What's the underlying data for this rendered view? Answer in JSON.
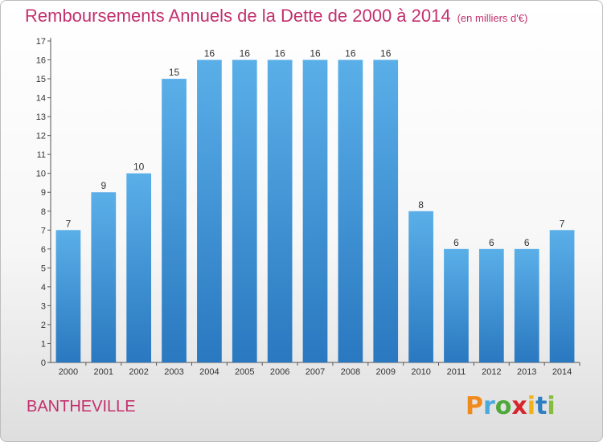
{
  "header": {
    "title": "Remboursements Annuels de la Dette de 2000 à 2014",
    "unit": "(en milliers d'€)"
  },
  "footer": {
    "place": "BANTHEVILLE",
    "logo_letters": [
      "P",
      "r",
      "o",
      "x",
      "i",
      "t",
      "i"
    ]
  },
  "colors": {
    "title": "#c2306e",
    "bar_top": "#5aafe8",
    "bar_bottom": "#2a78c0"
  },
  "chart_data": {
    "type": "bar",
    "title": "Remboursements Annuels de la Dette de 2000 à 2014",
    "subtitle": "(en milliers d'€)",
    "categories": [
      "2000",
      "2001",
      "2002",
      "2003",
      "2004",
      "2005",
      "2006",
      "2007",
      "2008",
      "2009",
      "2010",
      "2011",
      "2012",
      "2013",
      "2014"
    ],
    "values": [
      7,
      9,
      10,
      15,
      16,
      16,
      16,
      16,
      16,
      16,
      8,
      6,
      6,
      6,
      7
    ],
    "ylim": [
      0,
      17
    ],
    "yticks": [
      0,
      1,
      2,
      3,
      4,
      5,
      6,
      7,
      8,
      9,
      10,
      11,
      12,
      13,
      14,
      15,
      16,
      17
    ],
    "grid": false,
    "data_labels": true
  }
}
